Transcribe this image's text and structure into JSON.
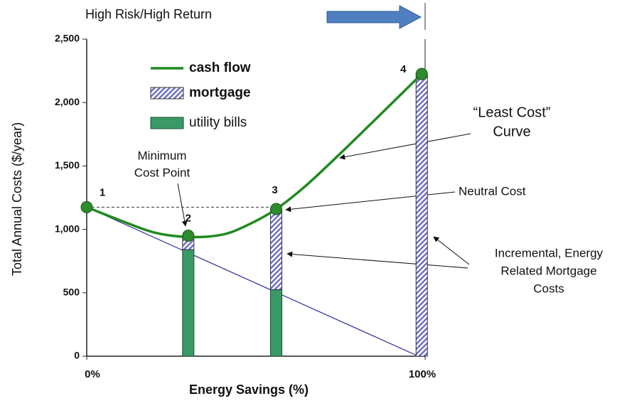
{
  "chart_data": {
    "type": "combo",
    "xlabel": "Energy Savings (%)",
    "ylabel": "Total Annual Costs ($/year)",
    "xlim": [
      0,
      100
    ],
    "ylim": [
      0,
      2500
    ],
    "xticks": [
      {
        "value": 0,
        "label": "0%"
      },
      {
        "value": 100,
        "label": "100%"
      }
    ],
    "yticks": [
      0,
      500,
      {
        "value": 1000,
        "label": "1,000"
      },
      {
        "value": 1500,
        "label": "1,500"
      },
      {
        "value": 2000,
        "label": "2,000"
      },
      {
        "value": 2500,
        "label": "2,500"
      }
    ],
    "series": [
      {
        "name": "cash flow",
        "type": "line",
        "color": "#1f8a1f",
        "x": [
          0,
          10,
          20,
          30,
          40,
          48,
          56,
          65,
          75,
          86,
          99
        ],
        "values": [
          1175,
          1070,
          975,
          940,
          958,
          1040,
          1160,
          1350,
          1600,
          1885,
          2225
        ]
      },
      {
        "name": "mortgage",
        "type": "bar",
        "color": "#6b6bc4",
        "x": [
          30,
          56,
          99
        ],
        "values": [
          110,
          635,
          2225
        ]
      },
      {
        "name": "utility bills",
        "type": "bar",
        "color": "#3a9a66",
        "x": [
          30,
          56,
          99
        ],
        "values": [
          840,
          525,
          0
        ]
      }
    ],
    "reference_line": {
      "color": "#2a2a9a",
      "x": [
        0,
        98
      ],
      "values": [
        1175,
        0
      ]
    },
    "points": {
      "color": "#2e8b2e",
      "x": [
        0,
        30,
        56,
        99
      ],
      "values": [
        1175,
        950,
        1160,
        2225
      ],
      "labels": [
        "1",
        "2",
        "3",
        "4"
      ]
    },
    "annotations": [
      {
        "lines": [
          "High Risk/High Return"
        ]
      },
      {
        "lines": [
          "Minimum",
          "Cost Point"
        ]
      },
      {
        "lines": [
          "“Least Cost”",
          "Curve"
        ]
      },
      {
        "lines": [
          "Neutral Cost"
        ]
      },
      {
        "lines": [
          "Incremental, Energy",
          "Related Mortgage",
          "Costs"
        ]
      }
    ]
  }
}
